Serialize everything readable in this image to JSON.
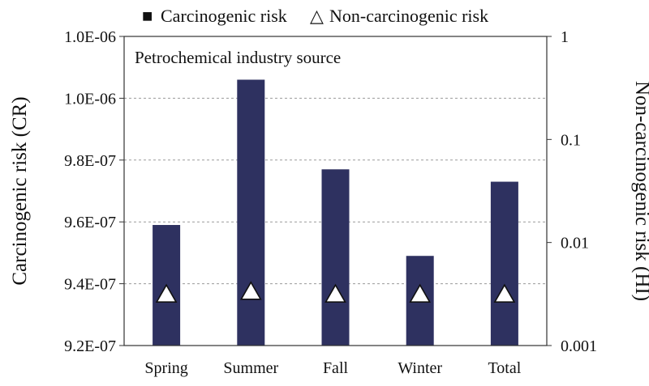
{
  "chart_data": {
    "type": "bar",
    "annotation": "Petrochemical industry source",
    "categories": [
      "Spring",
      "Summer",
      "Fall",
      "Winter",
      "Total"
    ],
    "series": [
      {
        "name": "Carcinogenic risk",
        "axis": "left",
        "mark": "bar",
        "color": "#2e3160",
        "values": [
          9.59e-07,
          1.006e-06,
          9.77e-07,
          9.49e-07,
          9.73e-07
        ]
      },
      {
        "name": "Non-carcinogenic risk",
        "axis": "right",
        "mark": "triangle",
        "color": "#ffffff",
        "values": [
          0.0032,
          0.0034,
          0.0032,
          0.0032,
          0.0032
        ]
      }
    ],
    "legend": {
      "position": "top",
      "bar_symbol": "■",
      "triangle_symbol": "△"
    },
    "y_left": {
      "label": "Carcinogenic risk (CR)",
      "min": 9.2e-07,
      "max": 1.02e-06,
      "ticks": [
        9.2e-07,
        9.4e-07,
        9.6e-07,
        9.8e-07,
        1e-06,
        1.02e-06
      ],
      "tick_labels": [
        "9.2E-07",
        "9.4E-07",
        "9.6E-07",
        "9.8E-07",
        "1.0E-06",
        "1.0E-06"
      ]
    },
    "y_right": {
      "label": "Non-carcinogenic risk (HI)",
      "scale": "log",
      "min": 0.001,
      "max": 1,
      "ticks": [
        0.001,
        0.01,
        0.1,
        1
      ],
      "tick_labels": [
        "0.001",
        "0.01",
        "0.1",
        "1"
      ]
    },
    "grid": "horizontal dashed"
  }
}
